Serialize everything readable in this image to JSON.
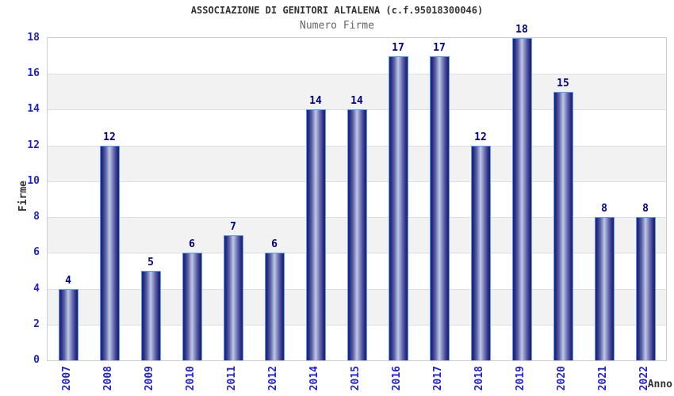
{
  "header": {
    "title": "ASSOCIAZIONE DI GENITORI ALTALENA (c.f.95018300046)",
    "subtitle": "Numero Firme"
  },
  "chart_data": {
    "type": "bar",
    "title": "Numero Firme",
    "xlabel": "Anno",
    "ylabel": "Firme",
    "categories": [
      "2007",
      "2008",
      "2009",
      "2010",
      "2011",
      "2012",
      "2014",
      "2015",
      "2016",
      "2017",
      "2018",
      "2019",
      "2020",
      "2021",
      "2022"
    ],
    "values": [
      4,
      12,
      5,
      6,
      7,
      6,
      14,
      14,
      17,
      17,
      12,
      18,
      15,
      8,
      8
    ],
    "ylim": [
      0,
      18
    ],
    "ytick_step": 2,
    "yticks": [
      0,
      2,
      4,
      6,
      8,
      10,
      12,
      14,
      16,
      18
    ],
    "grid": true,
    "legend": false,
    "band_alternating": true,
    "colors": {
      "title": "#333333",
      "subtitle": "#666666",
      "axis_label": "#333333",
      "tick_label": "#2222cc",
      "value_label": "#000080",
      "grid_line": "#dddddd",
      "plot_border": "#cccccc",
      "band_fill": "#f2f2f2",
      "bar_dark": "#1e1e78",
      "bar_light": "#c3c7e6",
      "bar_border": "#55a0f0"
    }
  }
}
